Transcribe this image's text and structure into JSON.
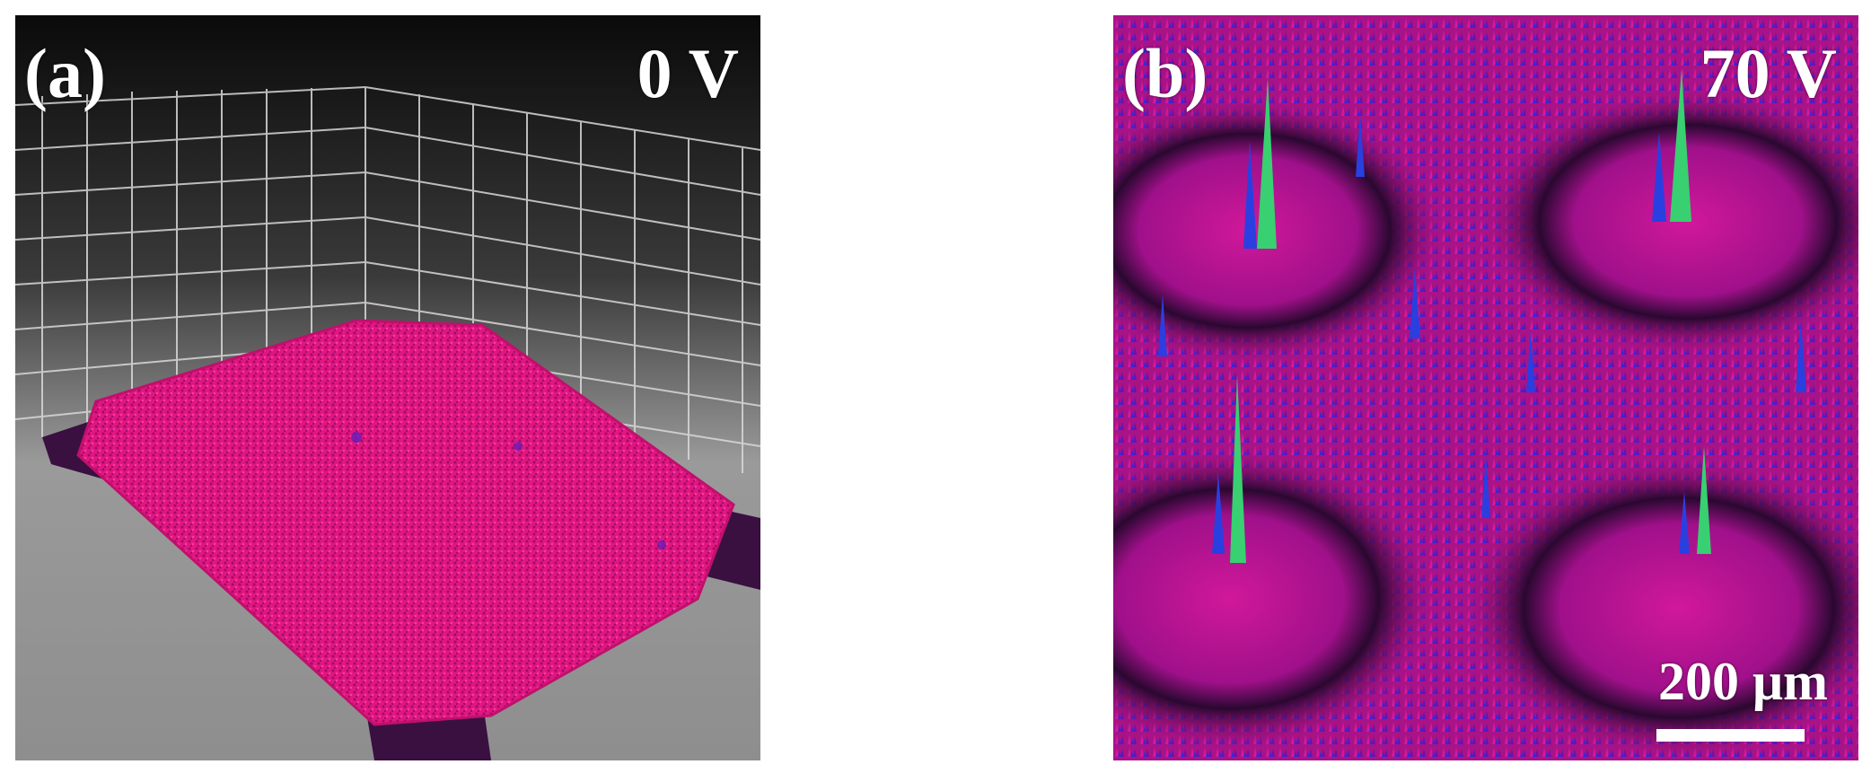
{
  "panels": [
    {
      "letter": "(a)",
      "voltage": "0 V"
    },
    {
      "letter": "(b)",
      "voltage": "70 V",
      "scale_bar_label": "200 μm"
    }
  ],
  "colors": {
    "surface_magenta": "#e0177f",
    "peak_blue": "#2a3fe0",
    "peak_green": "#38d070",
    "background_dark": "#0a0a0a",
    "floor_gray": "#a0a0a0"
  }
}
